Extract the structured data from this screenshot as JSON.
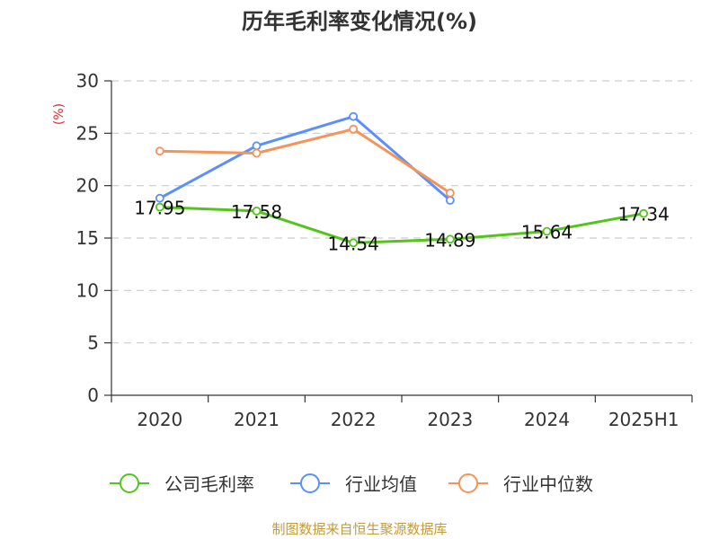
{
  "chart_data": {
    "type": "line",
    "title": "历年毛利率变化情况(%)",
    "ylabel": "(%)",
    "xlabel": "",
    "categories": [
      "2020",
      "2021",
      "2022",
      "2023",
      "2024",
      "2025H1"
    ],
    "ylim": [
      0,
      30
    ],
    "yticks": [
      0,
      5,
      10,
      15,
      20,
      25,
      30
    ],
    "grid": true,
    "legend_position": "bottom",
    "series": [
      {
        "name": "公司毛利率",
        "color": "#52c41a",
        "values": [
          17.95,
          17.58,
          14.54,
          14.89,
          15.64,
          17.34
        ],
        "labels": [
          "17.95",
          "17.58",
          "14.54",
          "14.89",
          "15.64",
          "17.34"
        ]
      },
      {
        "name": "行业均值",
        "color": "#5b8ff9",
        "values": [
          18.8,
          23.8,
          26.6,
          18.6,
          null,
          null
        ]
      },
      {
        "name": "行业中位数",
        "color": "#f4935a",
        "values": [
          23.3,
          23.1,
          25.4,
          19.3,
          null,
          null
        ]
      }
    ]
  },
  "ylabel_color": "#e8242c",
  "source": {
    "text": "制图数据来自恒生聚源数据库",
    "color": "#c39a3a"
  }
}
